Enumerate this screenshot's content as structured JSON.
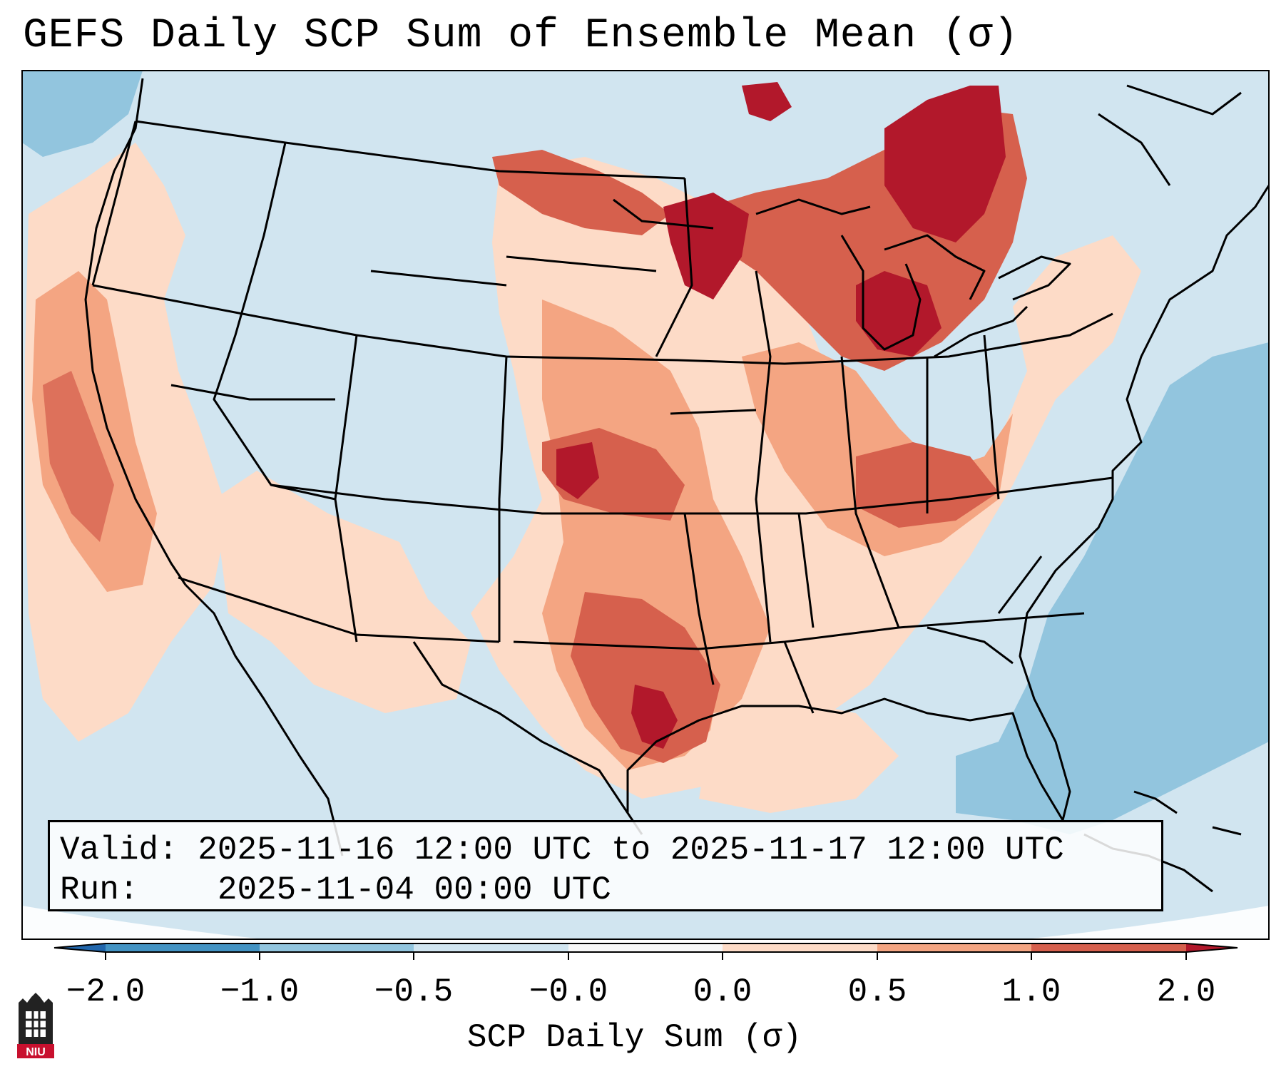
{
  "title": "GEFS Daily SCP Sum of Ensemble Mean (σ)",
  "info": {
    "valid_label": "Valid:",
    "valid_value": "2025-11-16 12:00 UTC to 2025-11-17 12:00 UTC",
    "run_label": "Run:",
    "run_value": "2025-11-04 00:00 UTC"
  },
  "colorbar": {
    "label": "SCP Daily Sum (σ)",
    "ticks": [
      "−2.0",
      "−1.0",
      "−0.5",
      "−0.0",
      "0.0",
      "0.5",
      "1.0",
      "2.0"
    ],
    "segment_colors": [
      "#4393c3",
      "#92c5de",
      "#d1e5f0",
      "#f7f7f7",
      "#fddbc7",
      "#f4a582",
      "#d6604d"
    ],
    "extend_low_color": "#2166ac",
    "extend_high_color": "#b2182b"
  },
  "map": {
    "region": "CONUS",
    "background_color": "#d1e5f0",
    "ocean_low_color": "#92c5de",
    "anomaly_colors": {
      "weak": "#fddbc7",
      "moderate": "#f4a582",
      "strong": "#d6604d",
      "extreme": "#b2182b"
    }
  },
  "logo": {
    "text": "NIU",
    "color": "#c8102e"
  }
}
